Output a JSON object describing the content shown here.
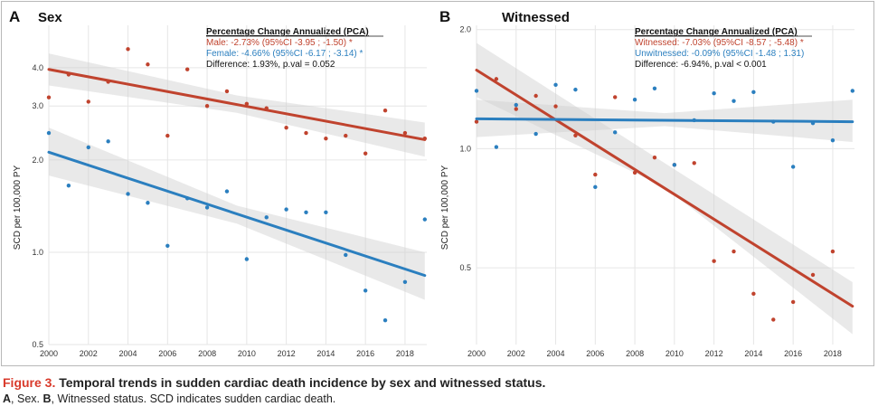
{
  "chart_data": [
    {
      "type": "scatter",
      "panel": "A",
      "title": "Sex",
      "xlabel": "",
      "ylabel": "SCD per 100,000 PY",
      "y_scale": "log",
      "xlim": [
        2000,
        2019.1
      ],
      "ylim": [
        0.5,
        5.5
      ],
      "x_ticks": [
        2000,
        2002,
        2004,
        2006,
        2008,
        2010,
        2012,
        2014,
        2016,
        2018
      ],
      "x_tick_labels": [
        "2000",
        "2002",
        "2004",
        "2006",
        "2008",
        "2010",
        "2012",
        "2014",
        "2016",
        "2018"
      ],
      "y_ticks": [
        0.5,
        1.0,
        2.0,
        3.0,
        4.0
      ],
      "y_tick_labels": [
        "0.5",
        "1.0",
        "2.0",
        "3.0",
        "4.0"
      ],
      "series": [
        {
          "name": "Male",
          "color": "#c0432e",
          "points": [
            [
              2000,
              3.2
            ],
            [
              2001,
              3.8
            ],
            [
              2002,
              3.1
            ],
            [
              2003,
              3.6
            ],
            [
              2004,
              4.6
            ],
            [
              2005,
              4.1
            ],
            [
              2006,
              2.4
            ],
            [
              2007,
              3.95
            ],
            [
              2008,
              3.0
            ],
            [
              2009,
              3.35
            ],
            [
              2010,
              3.05
            ],
            [
              2011,
              2.95
            ],
            [
              2012,
              2.55
            ],
            [
              2013,
              2.45
            ],
            [
              2014,
              2.35
            ],
            [
              2015,
              2.4
            ],
            [
              2016,
              2.1
            ],
            [
              2017,
              2.9
            ],
            [
              2018,
              2.45
            ],
            [
              2019,
              2.35
            ]
          ],
          "trend": [
            [
              2000,
              3.95
            ],
            [
              2019,
              2.33
            ]
          ],
          "ci_upper": [
            [
              2000,
              4.45
            ],
            [
              2009.5,
              3.25
            ],
            [
              2019,
              2.65
            ]
          ],
          "ci_lower": [
            [
              2000,
              3.5
            ],
            [
              2009.5,
              2.85
            ],
            [
              2019,
              2.05
            ]
          ]
        },
        {
          "name": "Female",
          "color": "#2b7fbf",
          "points": [
            [
              2000,
              2.45
            ],
            [
              2001,
              1.65
            ],
            [
              2002,
              2.2
            ],
            [
              2003,
              2.3
            ],
            [
              2004,
              1.55
            ],
            [
              2005,
              1.45
            ],
            [
              2006,
              1.05
            ],
            [
              2007,
              1.5
            ],
            [
              2008,
              1.4
            ],
            [
              2009,
              1.58
            ],
            [
              2010,
              0.95
            ],
            [
              2011,
              1.3
            ],
            [
              2012,
              1.38
            ],
            [
              2013,
              1.35
            ],
            [
              2014,
              1.35
            ],
            [
              2015,
              0.98
            ],
            [
              2016,
              0.75
            ],
            [
              2017,
              0.6
            ],
            [
              2018,
              0.8
            ],
            [
              2019,
              1.28
            ]
          ],
          "trend": [
            [
              2000,
              2.12
            ],
            [
              2019,
              0.84
            ]
          ],
          "ci_upper": [
            [
              2000,
              2.55
            ],
            [
              2009.5,
              1.42
            ],
            [
              2019,
              1.0
            ]
          ],
          "ci_lower": [
            [
              2000,
              1.78
            ],
            [
              2009.5,
              1.24
            ],
            [
              2019,
              0.7
            ]
          ]
        }
      ],
      "annotation": {
        "title": "Percentage Change Annualized (PCA)",
        "lines": [
          {
            "text": "Male: -2.73% (95%CI -3.95 ; -1.50) *",
            "color": "#c0432e"
          },
          {
            "text": "Female: -4.66% (95%CI -6.17 ; -3.14) *",
            "color": "#2b7fbf"
          },
          {
            "text": "Difference: 1.93%, p.val = 0.052",
            "color": "#111111"
          }
        ]
      }
    },
    {
      "type": "scatter",
      "panel": "B",
      "title": "Witnessed",
      "xlabel": "",
      "ylabel": "SCD per 100,000 PY",
      "y_scale": "log",
      "xlim": [
        2000,
        2019.1
      ],
      "ylim": [
        0.32,
        2.05
      ],
      "x_ticks": [
        2000,
        2002,
        2004,
        2006,
        2008,
        2010,
        2012,
        2014,
        2016,
        2018
      ],
      "x_tick_labels": [
        "2000",
        "2002",
        "2004",
        "2006",
        "2008",
        "2010",
        "2012",
        "2014",
        "2016",
        "2018"
      ],
      "y_ticks": [
        0.5,
        1.0,
        2.0
      ],
      "y_tick_labels": [
        "0.5",
        "1.0",
        "2.0"
      ],
      "series": [
        {
          "name": "Witnessed",
          "color": "#c0432e",
          "points": [
            [
              2000,
              1.17
            ],
            [
              2001,
              1.5
            ],
            [
              2002,
              1.26
            ],
            [
              2003,
              1.36
            ],
            [
              2004,
              1.28
            ],
            [
              2005,
              1.08
            ],
            [
              2006,
              0.86
            ],
            [
              2007,
              1.35
            ],
            [
              2008,
              0.87
            ],
            [
              2009,
              0.95
            ],
            [
              2010,
              0.91
            ],
            [
              2011,
              0.92
            ],
            [
              2012,
              0.52
            ],
            [
              2013,
              0.55
            ],
            [
              2014,
              0.43
            ],
            [
              2015,
              0.37
            ],
            [
              2016,
              0.41
            ],
            [
              2017,
              0.48
            ],
            [
              2018,
              0.55
            ]
          ],
          "trend": [
            [
              2000,
              1.58
            ],
            [
              2019,
              0.4
            ]
          ],
          "ci_upper": [
            [
              2000,
              1.85
            ],
            [
              2009.5,
              0.92
            ],
            [
              2019,
              0.46
            ]
          ],
          "ci_lower": [
            [
              2000,
              1.35
            ],
            [
              2009.5,
              0.8
            ],
            [
              2019,
              0.34
            ]
          ]
        },
        {
          "name": "Unwitnessed",
          "color": "#2b7fbf",
          "points": [
            [
              2000,
              1.4
            ],
            [
              2001,
              1.01
            ],
            [
              2002,
              1.29
            ],
            [
              2003,
              1.09
            ],
            [
              2004,
              1.45
            ],
            [
              2005,
              1.41
            ],
            [
              2006,
              0.8
            ],
            [
              2007,
              1.1
            ],
            [
              2008,
              1.33
            ],
            [
              2009,
              1.42
            ],
            [
              2010,
              0.91
            ],
            [
              2011,
              1.18
            ],
            [
              2012,
              1.38
            ],
            [
              2013,
              1.32
            ],
            [
              2014,
              1.39
            ],
            [
              2015,
              1.17
            ],
            [
              2016,
              0.9
            ],
            [
              2017,
              1.16
            ],
            [
              2018,
              1.05
            ],
            [
              2019,
              1.4
            ]
          ],
          "trend": [
            [
              2000,
              1.19
            ],
            [
              2019,
              1.17
            ]
          ],
          "ci_upper": [
            [
              2000,
              1.33
            ],
            [
              2009.5,
              1.23
            ],
            [
              2019,
              1.33
            ]
          ],
          "ci_lower": [
            [
              2000,
              1.07
            ],
            [
              2009.5,
              1.14
            ],
            [
              2019,
              1.04
            ]
          ]
        }
      ],
      "annotation": {
        "title": "Percentage Change Annualized (PCA)",
        "lines": [
          {
            "text": "Witnessed: -7.03% (95%CI -8.57 ; -5.48) *",
            "color": "#c0432e"
          },
          {
            "text": "Unwitnessed: -0.09% (95%CI -1.48 ; 1.31)",
            "color": "#2b7fbf"
          },
          {
            "text": "Difference: -6.94%, p.val < 0.001",
            "color": "#111111"
          }
        ]
      }
    }
  ],
  "caption": {
    "figure_label": "Figure 3.",
    "title": "Temporal trends in sudden cardiac death incidence by sex and witnessed status.",
    "text_a": "A",
    "text_1": ", Sex. ",
    "text_b": "B",
    "text_2": ", Witnessed status. SCD indicates sudden cardiac death."
  }
}
